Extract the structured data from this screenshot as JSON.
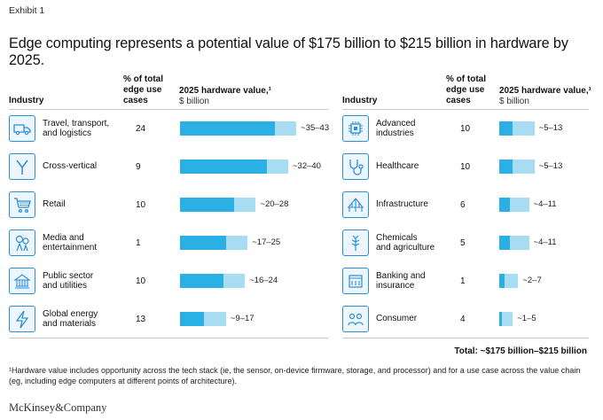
{
  "exhibit_label": "Exhibit 1",
  "title": "Edge computing represents a potential value of $175 billion to $215 billion in hardware by 2025.",
  "headers": {
    "industry": "Industry",
    "pct": "% of total\nedge use\ncases",
    "value": "2025 hardware value,¹",
    "unit": "$ billion"
  },
  "colors": {
    "low": "#2bb0e6",
    "high": "#a8dcf3",
    "icon_border": "#2b8fd6"
  },
  "chart_data": {
    "type": "bar",
    "stacking": "range (low solid, high light)",
    "xlim": [
      0,
      45
    ],
    "title": "Edge computing represents a potential value of $175 billion to $215 billion in hardware by 2025.",
    "xlabel": "2025 hardware value,¹ $ billion",
    "left": [
      {
        "label": "Travel, transport,\nand logistics",
        "icon": "truck-icon",
        "pct": "24",
        "low": 35,
        "high": 43,
        "range": "~35–43"
      },
      {
        "label": "Cross-vertical",
        "icon": "branch-icon",
        "pct": "9",
        "low": 32,
        "high": 40,
        "range": "~32–40"
      },
      {
        "label": "Retail",
        "icon": "cart-icon",
        "pct": "10",
        "low": 20,
        "high": 28,
        "range": "~20–28"
      },
      {
        "label": "Media and\nentertainment",
        "icon": "media-icon",
        "pct": "1",
        "low": 17,
        "high": 25,
        "range": "~17–25"
      },
      {
        "label": "Public sector\nand utilities",
        "icon": "government-icon",
        "pct": "10",
        "low": 16,
        "high": 24,
        "range": "~16–24"
      },
      {
        "label": "Global energy\nand materials",
        "icon": "lightning-icon",
        "pct": "13",
        "low": 9,
        "high": 17,
        "range": "~9–17"
      }
    ],
    "right": [
      {
        "label": "Advanced\nindustries",
        "icon": "chip-icon",
        "pct": "10",
        "low": 5,
        "high": 13,
        "range": "~5–13"
      },
      {
        "label": "Healthcare",
        "icon": "stethoscope-icon",
        "pct": "10",
        "low": 5,
        "high": 13,
        "range": "~5–13"
      },
      {
        "label": "Infrastructure",
        "icon": "bridge-icon",
        "pct": "6",
        "low": 4,
        "high": 11,
        "range": "~4–11"
      },
      {
        "label": "Chemicals\nand agriculture",
        "icon": "wheat-icon",
        "pct": "5",
        "low": 4,
        "high": 11,
        "range": "~4–11"
      },
      {
        "label": "Banking and\ninsurance",
        "icon": "bank-icon",
        "pct": "1",
        "low": 2,
        "high": 7,
        "range": "~2–7"
      },
      {
        "label": "Consumer",
        "icon": "people-icon",
        "pct": "4",
        "low": 1,
        "high": 5,
        "range": "~1–5"
      }
    ]
  },
  "total": "Total: ~$175 billion–$215 billion",
  "footnote": "¹Hardware value includes opportunity across the tech stack (ie, the sensor, on-device firmware, storage, and processor) and for a use case across the value chain (eg, including edge computers at different points of architecture).",
  "logo": "McKinsey&Company"
}
